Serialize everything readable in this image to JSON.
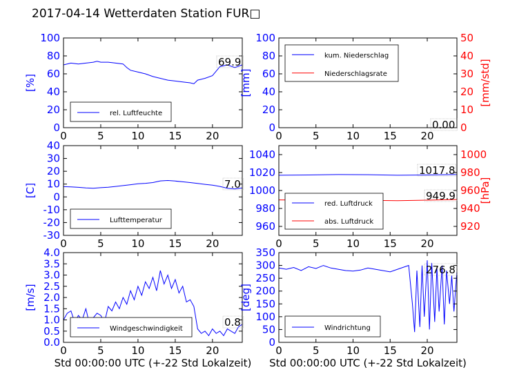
{
  "title": "2017-04-14 Wetterdaten Station FUR□",
  "colors": {
    "blue": "#0000ff",
    "red": "#ff0000",
    "light_blue": "#8080ff"
  },
  "chart_data": [
    {
      "type": "line",
      "id": "humidity",
      "xlim": [
        0,
        24
      ],
      "ylim": [
        0,
        100
      ],
      "xticks": [
        0,
        5,
        10,
        15,
        20
      ],
      "yticks": [
        0,
        20,
        40,
        60,
        80,
        100
      ],
      "ylabel": "[%]",
      "xlabel": "",
      "legend": "bottom-left",
      "last_value_label": "69.9",
      "series": [
        {
          "name": "rel. Luftfeuchte",
          "color": "#0000ff",
          "x": [
            0,
            1,
            2,
            3,
            4,
            4.5,
            5,
            6,
            7,
            8,
            8.5,
            9,
            10,
            11,
            12,
            13,
            14,
            15,
            16,
            17,
            17.5,
            18,
            19,
            20,
            20.5,
            21,
            22,
            23,
            24
          ],
          "y": [
            70,
            72,
            71,
            72,
            73,
            74,
            73,
            73,
            72,
            71,
            67,
            64,
            62,
            60,
            57,
            55,
            53,
            52,
            51,
            50,
            49,
            53,
            55,
            58,
            63,
            68,
            70,
            67,
            70
          ]
        }
      ]
    },
    {
      "type": "line",
      "id": "precip",
      "xlim": [
        0,
        24
      ],
      "ylim": [
        0,
        100
      ],
      "ylim_right": [
        0,
        50
      ],
      "xticks": [
        0,
        5,
        10,
        15,
        20
      ],
      "yticks": [
        0,
        20,
        40,
        60,
        80,
        100
      ],
      "yticks_right": [
        0,
        10,
        20,
        30,
        40,
        50
      ],
      "ylabel": "[mm]",
      "ylabel_right": "[mm/std]",
      "xlabel": "",
      "legend": "top-left",
      "last_value_label": "0.00",
      "series": [
        {
          "name": "kum. Niederschlag",
          "color": "#0000ff",
          "axis": "left",
          "x": [
            0,
            24
          ],
          "y": [
            0,
            0
          ]
        },
        {
          "name": "Niederschlagsrate",
          "color": "#ff0000",
          "axis": "right",
          "x": [
            0,
            24
          ],
          "y": [
            0,
            0
          ]
        }
      ]
    },
    {
      "type": "line",
      "id": "temperature",
      "xlim": [
        0,
        24
      ],
      "ylim": [
        -30,
        40
      ],
      "xticks": [
        0,
        5,
        10,
        15,
        20
      ],
      "yticks": [
        -30,
        -20,
        -10,
        0,
        10,
        20,
        30,
        40
      ],
      "ylabel": "[C]",
      "xlabel": "",
      "legend": "bottom-left",
      "last_value_label": "7.0",
      "series": [
        {
          "name": "Lufttemperatur",
          "color": "#0000ff",
          "x": [
            0,
            1,
            2,
            3,
            4,
            5,
            6,
            7,
            8,
            9,
            10,
            11,
            12,
            13,
            14,
            15,
            16,
            17,
            18,
            19,
            20,
            21,
            22,
            23,
            24
          ],
          "y": [
            8,
            7.8,
            7.5,
            7.0,
            6.8,
            7.2,
            7.6,
            8.2,
            8.8,
            9.5,
            10.2,
            10.6,
            11.2,
            12.5,
            12.8,
            12.4,
            11.8,
            11.2,
            10.5,
            9.8,
            9.2,
            8.2,
            6.8,
            6.2,
            7.0
          ]
        }
      ]
    },
    {
      "type": "line",
      "id": "pressure",
      "xlim": [
        0,
        24
      ],
      "ylim": [
        950,
        1050
      ],
      "ylim_right": [
        910,
        1010
      ],
      "xticks": [
        0,
        5,
        10,
        15,
        20
      ],
      "yticks": [
        960,
        980,
        1000,
        1020,
        1040
      ],
      "yticks_right": [
        920,
        940,
        960,
        980,
        1000
      ],
      "ylabel": "",
      "ylabel_right": "[hPa]",
      "xlabel": "",
      "legend": "bottom-left",
      "value_labels": [
        "1017.8",
        "949.9"
      ],
      "series": [
        {
          "name": "red. Luftdruck",
          "color": "#0000ff",
          "axis": "left",
          "x": [
            0,
            4,
            8,
            12,
            16,
            20,
            24
          ],
          "y": [
            1017,
            1017.3,
            1017.8,
            1017.6,
            1017.0,
            1017.3,
            1017.8
          ]
        },
        {
          "name": "abs. Luftdruck",
          "color": "#ff0000",
          "axis": "right",
          "x": [
            0,
            4,
            8,
            12,
            16,
            20,
            24
          ],
          "y": [
            949.5,
            949.2,
            949.4,
            949.0,
            948.6,
            949.2,
            949.9
          ]
        }
      ]
    },
    {
      "type": "line",
      "id": "windspeed",
      "xlim": [
        0,
        24
      ],
      "ylim": [
        0,
        4
      ],
      "xticks": [
        0,
        5,
        10,
        15,
        20
      ],
      "yticks": [
        0.0,
        0.5,
        1.0,
        1.5,
        2.0,
        2.5,
        3.0,
        3.5,
        4.0
      ],
      "ylabel": "[m/s]",
      "xlabel": "Std 00:00:00 UTC (+-22 Std Lokalzeit)",
      "legend": "bottom-left",
      "last_value_label": "0.8",
      "series": [
        {
          "name": "Windgeschwindigkeit",
          "color": "#0000ff",
          "x": [
            0,
            0.5,
            1,
            1.5,
            2,
            2.5,
            3,
            3.5,
            4,
            4.5,
            5,
            5.5,
            6,
            6.5,
            7,
            7.5,
            8,
            8.5,
            9,
            9.5,
            10,
            10.5,
            11,
            11.5,
            12,
            12.5,
            13,
            13.5,
            14,
            14.5,
            15,
            15.5,
            16,
            16.5,
            17,
            17.5,
            18,
            18.5,
            19,
            19.5,
            20,
            20.5,
            21,
            21.5,
            22,
            22.5,
            23,
            23.5,
            24
          ],
          "y": [
            1.0,
            1.3,
            1.4,
            0.9,
            1.2,
            1.0,
            1.5,
            0.8,
            1.1,
            1.3,
            1.2,
            0.9,
            1.6,
            1.4,
            1.8,
            1.5,
            2.0,
            1.7,
            2.3,
            1.9,
            2.5,
            2.1,
            2.7,
            2.4,
            2.9,
            2.3,
            3.2,
            2.6,
            3.0,
            2.4,
            2.8,
            2.2,
            2.5,
            1.8,
            1.9,
            1.6,
            0.6,
            0.4,
            0.5,
            0.3,
            0.6,
            0.4,
            0.5,
            0.3,
            0.6,
            0.5,
            0.4,
            0.7,
            0.8
          ]
        }
      ]
    },
    {
      "type": "line",
      "id": "winddir",
      "xlim": [
        0,
        24
      ],
      "ylim": [
        0,
        350
      ],
      "xticks": [
        0,
        5,
        10,
        15,
        20
      ],
      "yticks": [
        0,
        50,
        100,
        150,
        200,
        250,
        300,
        350
      ],
      "ylabel": "[deg]",
      "xlabel": "Std 00:00:00 UTC (+-22 Std Lokalzeit)",
      "legend": "bottom-left",
      "last_value_label": "276.8",
      "series": [
        {
          "name": "Windrichtung",
          "color": "#0000ff",
          "x": [
            0,
            1,
            2,
            3,
            4,
            5,
            6,
            7,
            8,
            9,
            10,
            11,
            12,
            13,
            14,
            15,
            16,
            17,
            17.5,
            18,
            18.3,
            18.6,
            19,
            19.3,
            19.6,
            20,
            20.3,
            20.6,
            21,
            21.3,
            21.6,
            22,
            22.3,
            22.6,
            23,
            23.3,
            23.6,
            24
          ],
          "y": [
            290,
            285,
            292,
            280,
            295,
            288,
            300,
            290,
            285,
            280,
            278,
            282,
            290,
            285,
            280,
            275,
            285,
            295,
            300,
            150,
            40,
            280,
            60,
            300,
            100,
            320,
            50,
            310,
            80,
            290,
            120,
            300,
            70,
            280,
            150,
            260,
            120,
            277
          ]
        }
      ]
    }
  ]
}
